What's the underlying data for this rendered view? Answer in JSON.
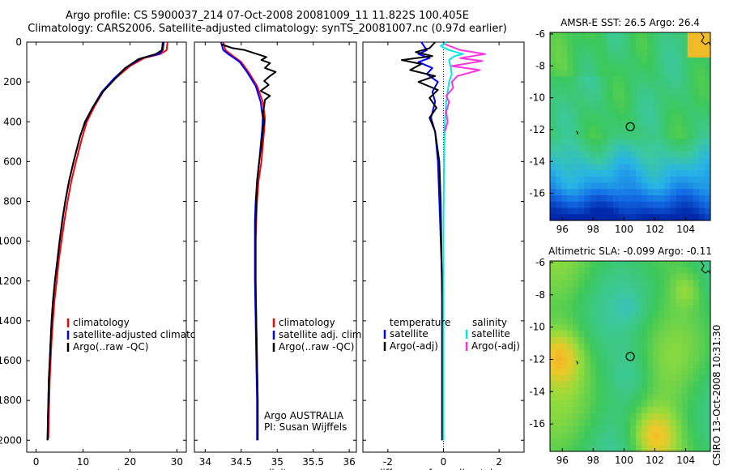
{
  "header": {
    "line1": "Argo profile: CS 5900037_214 07-Oct-2008 20081009_11 11.822S 100.405E",
    "line2": "Climatology: CARS2006. Satellite-adjusted climatology: synTS_20081007.nc (0.97d earlier)"
  },
  "credit": "CSIRO 13-Oct-2008 10:31:30",
  "colors": {
    "climatology": "#ff0000",
    "satellite": "#0000ff",
    "argo": "#000000",
    "cyan": "#00e8e8",
    "magenta": "#ff33dd"
  },
  "chart_data": [
    {
      "type": "line",
      "name": "temperature",
      "xlabel": "temperature",
      "ylabel": "",
      "xlim": [
        -2,
        32
      ],
      "ylim": [
        2060,
        0
      ],
      "xticks": [
        "0",
        "10",
        "20",
        "30"
      ],
      "xtick_values": [
        0,
        10,
        20,
        30
      ],
      "yticks": [
        "0",
        "200",
        "400",
        "600",
        "800",
        "1000",
        "1200",
        "1400",
        "1600",
        "1800",
        "2000"
      ],
      "ytick_values": [
        0,
        200,
        400,
        600,
        800,
        1000,
        1200,
        1400,
        1600,
        1800,
        2000
      ],
      "legend": [
        "climatology",
        "satellite-adjusted climatology",
        "Argo(..raw -QC)"
      ],
      "series": [
        {
          "name": "climatology",
          "color": "#ff0000",
          "points": [
            [
              28,
              0
            ],
            [
              27.8,
              40
            ],
            [
              26.5,
              60
            ],
            [
              23,
              80
            ],
            [
              20,
              120
            ],
            [
              17,
              180
            ],
            [
              14.5,
              240
            ],
            [
              12.5,
              320
            ],
            [
              10.8,
              400
            ],
            [
              9.8,
              480
            ],
            [
              8.5,
              600
            ],
            [
              7.5,
              700
            ],
            [
              6.7,
              800
            ],
            [
              6,
              900
            ],
            [
              5.4,
              1000
            ],
            [
              4.8,
              1100
            ],
            [
              4.4,
              1200
            ],
            [
              3.9,
              1300
            ],
            [
              3.6,
              1400
            ],
            [
              3.3,
              1500
            ],
            [
              3.1,
              1600
            ],
            [
              2.9,
              1700
            ],
            [
              2.8,
              1800
            ],
            [
              2.7,
              1900
            ],
            [
              2.6,
              1990
            ]
          ]
        },
        {
          "name": "satellite-adjusted climatology",
          "color": "#0000ff",
          "points": [
            [
              27.2,
              0
            ],
            [
              27,
              40
            ],
            [
              26.2,
              60
            ],
            [
              22.5,
              80
            ],
            [
              19,
              130
            ],
            [
              16.5,
              185
            ],
            [
              14,
              250
            ],
            [
              12,
              330
            ],
            [
              10.4,
              400
            ],
            [
              9.3,
              480
            ],
            [
              8,
              600
            ],
            [
              7,
              700
            ],
            [
              6.2,
              800
            ],
            [
              5.6,
              900
            ],
            [
              5,
              1000
            ],
            [
              4.5,
              1100
            ],
            [
              4,
              1200
            ],
            [
              3.6,
              1300
            ],
            [
              3.3,
              1400
            ],
            [
              3.1,
              1500
            ],
            [
              2.9,
              1600
            ],
            [
              2.7,
              1700
            ],
            [
              2.6,
              1800
            ],
            [
              2.5,
              1900
            ],
            [
              2.5,
              2000
            ]
          ]
        },
        {
          "name": "Argo(..raw -QC)",
          "color": "#000000",
          "points": [
            [
              27,
              0
            ],
            [
              26.8,
              40
            ],
            [
              25.5,
              60
            ],
            [
              21.8,
              85
            ],
            [
              19,
              130
            ],
            [
              17,
              180
            ],
            [
              14.2,
              250
            ],
            [
              12,
              330
            ],
            [
              10.5,
              400
            ],
            [
              9.4,
              470
            ],
            [
              8.1,
              590
            ],
            [
              7.1,
              690
            ],
            [
              6.3,
              790
            ],
            [
              5.6,
              890
            ],
            [
              5,
              1000
            ],
            [
              4.5,
              1100
            ],
            [
              4,
              1200
            ],
            [
              3.6,
              1300
            ],
            [
              3.3,
              1400
            ],
            [
              3.1,
              1500
            ],
            [
              2.9,
              1600
            ],
            [
              2.7,
              1700
            ],
            [
              2.6,
              1800
            ],
            [
              2.5,
              1900
            ],
            [
              2.4,
              2000
            ]
          ]
        }
      ]
    },
    {
      "type": "line",
      "name": "salinity",
      "xlabel": "salinity",
      "xlim": [
        33.85,
        36.1
      ],
      "ylim": [
        2060,
        0
      ],
      "xticks": [
        "34",
        "34.5",
        "35",
        "35.5",
        "36"
      ],
      "xtick_values": [
        34,
        34.5,
        35,
        35.5,
        36
      ],
      "legend": [
        "climatology",
        "satellite adj. clim.",
        "Argo(..raw -QC)"
      ],
      "annotation": [
        "Argo AUSTRALIA",
        "PI: Susan Wijffels"
      ],
      "series": [
        {
          "name": "climatology",
          "color": "#ff0000",
          "points": [
            [
              34.25,
              0
            ],
            [
              34.28,
              40
            ],
            [
              34.35,
              60
            ],
            [
              34.5,
              100
            ],
            [
              34.6,
              150
            ],
            [
              34.72,
              220
            ],
            [
              34.8,
              300
            ],
            [
              34.83,
              380
            ],
            [
              34.82,
              440
            ],
            [
              34.8,
              520
            ],
            [
              34.78,
              600
            ],
            [
              34.74,
              700
            ],
            [
              34.72,
              800
            ],
            [
              34.71,
              900
            ],
            [
              34.7,
              1000
            ],
            [
              34.7,
              1200
            ],
            [
              34.71,
              1400
            ],
            [
              34.72,
              1600
            ],
            [
              34.73,
              1800
            ],
            [
              34.73,
              2000
            ]
          ]
        },
        {
          "name": "satellite adj. clim.",
          "color": "#0000ff",
          "points": [
            [
              34.22,
              0
            ],
            [
              34.25,
              40
            ],
            [
              34.32,
              60
            ],
            [
              34.48,
              100
            ],
            [
              34.58,
              150
            ],
            [
              34.7,
              220
            ],
            [
              34.77,
              300
            ],
            [
              34.8,
              380
            ],
            [
              34.79,
              440
            ],
            [
              34.77,
              520
            ],
            [
              34.75,
              600
            ],
            [
              34.72,
              700
            ],
            [
              34.7,
              800
            ],
            [
              34.69,
              900
            ],
            [
              34.69,
              1000
            ],
            [
              34.69,
              1200
            ],
            [
              34.7,
              1400
            ],
            [
              34.71,
              1600
            ],
            [
              34.72,
              1800
            ],
            [
              34.72,
              2000
            ]
          ]
        },
        {
          "name": "Argo(..raw -QC)",
          "color": "#000000",
          "points": [
            [
              34.22,
              10
            ],
            [
              34.38,
              30
            ],
            [
              34.55,
              40
            ],
            [
              34.72,
              60
            ],
            [
              34.85,
              75
            ],
            [
              34.78,
              90
            ],
            [
              34.9,
              105
            ],
            [
              34.83,
              130
            ],
            [
              34.98,
              150
            ],
            [
              34.9,
              170
            ],
            [
              34.82,
              195
            ],
            [
              34.88,
              215
            ],
            [
              34.77,
              245
            ],
            [
              34.9,
              270
            ],
            [
              34.83,
              290
            ],
            [
              34.82,
              320
            ],
            [
              34.8,
              360
            ],
            [
              34.82,
              400
            ],
            [
              34.8,
              450
            ],
            [
              34.78,
              520
            ],
            [
              34.75,
              600
            ],
            [
              34.72,
              700
            ],
            [
              34.71,
              800
            ],
            [
              34.7,
              900
            ],
            [
              34.7,
              1000
            ],
            [
              34.7,
              1200
            ],
            [
              34.71,
              1400
            ],
            [
              34.72,
              1600
            ],
            [
              34.73,
              1800
            ],
            [
              34.73,
              2000
            ]
          ]
        }
      ]
    },
    {
      "type": "line",
      "name": "difference",
      "xlabel": "difference from climatology",
      "xlim": [
        -2.9,
        2.9
      ],
      "ylim": [
        2060,
        0
      ],
      "xticks": [
        "-2",
        "0",
        "2"
      ],
      "xtick_values": [
        -2,
        0,
        2
      ],
      "legend_left_title": "temperature",
      "legend_right_title": "salinity",
      "legend_left": [
        "satellite",
        "Argo(-adj)"
      ],
      "legend_right": [
        "satellite",
        "Argo(-adj)"
      ],
      "series": [
        {
          "name": "temperature satellite",
          "color": "#0000ff",
          "points": [
            [
              -0.8,
              0
            ],
            [
              -0.6,
              40
            ],
            [
              -0.9,
              60
            ],
            [
              -0.5,
              80
            ],
            [
              -0.9,
              100
            ],
            [
              -0.4,
              130
            ],
            [
              -0.6,
              160
            ],
            [
              -0.2,
              200
            ],
            [
              -0.4,
              250
            ],
            [
              -0.3,
              300
            ],
            [
              -0.45,
              380
            ],
            [
              -0.3,
              450
            ],
            [
              -0.2,
              600
            ],
            [
              -0.15,
              800
            ],
            [
              -0.1,
              1000
            ],
            [
              -0.05,
              1200
            ],
            [
              -0.05,
              1500
            ],
            [
              -0.05,
              1800
            ],
            [
              -0.05,
              2000
            ]
          ]
        },
        {
          "name": "temperature Argo(-adj)",
          "color": "#000000",
          "points": [
            [
              -0.3,
              0
            ],
            [
              -0.5,
              30
            ],
            [
              -1.0,
              50
            ],
            [
              -0.4,
              70
            ],
            [
              -1.5,
              90
            ],
            [
              -0.8,
              110
            ],
            [
              -1.2,
              140
            ],
            [
              -0.3,
              170
            ],
            [
              -0.9,
              200
            ],
            [
              -0.2,
              240
            ],
            [
              -0.5,
              280
            ],
            [
              -0.25,
              330
            ],
            [
              -0.5,
              380
            ],
            [
              -0.3,
              450
            ],
            [
              -0.15,
              600
            ],
            [
              -0.1,
              800
            ],
            [
              -0.08,
              1000
            ],
            [
              -0.05,
              1300
            ],
            [
              -0.05,
              1600
            ],
            [
              -0.05,
              2000
            ]
          ]
        },
        {
          "name": "salinity satellite",
          "color": "#00e8e8",
          "points": [
            [
              0.1,
              0
            ],
            [
              -0.1,
              20
            ],
            [
              0.2,
              40
            ],
            [
              0.7,
              60
            ],
            [
              0.4,
              70
            ],
            [
              0.2,
              90
            ],
            [
              0.25,
              120
            ],
            [
              0.3,
              160
            ],
            [
              0.2,
              200
            ],
            [
              0.1,
              300
            ],
            [
              0.05,
              400
            ],
            [
              0.02,
              600
            ],
            [
              0.0,
              900
            ],
            [
              0.0,
              1400
            ],
            [
              0.0,
              2000
            ]
          ]
        },
        {
          "name": "salinity Argo(-adj)",
          "color": "#ff33dd",
          "points": [
            [
              0.05,
              10
            ],
            [
              0.6,
              40
            ],
            [
              1.5,
              60
            ],
            [
              0.6,
              80
            ],
            [
              1.4,
              95
            ],
            [
              0.3,
              120
            ],
            [
              1.3,
              140
            ],
            [
              0.5,
              170
            ],
            [
              0.3,
              200
            ],
            [
              0.35,
              230
            ],
            [
              0.1,
              270
            ],
            [
              0.2,
              300
            ],
            [
              0.1,
              350
            ],
            [
              0.15,
              400
            ],
            [
              0.05,
              450
            ]
          ]
        }
      ]
    },
    {
      "type": "heatmap",
      "name": "sst_map",
      "title": "AMSR-E SST: 26.5  Argo: 26.4",
      "xlim": [
        95.2,
        105.6
      ],
      "ylim": [
        -17.7,
        -5.9
      ],
      "xticks": [
        "96",
        "98",
        "100",
        "102",
        "104"
      ],
      "xtick_values": [
        96,
        98,
        100,
        102,
        104
      ],
      "yticks": [
        "-6",
        "-8",
        "-10",
        "-12",
        "-14",
        "-16"
      ],
      "ytick_values": [
        -6,
        -8,
        -10,
        -12,
        -14,
        -16
      ],
      "float_position": [
        100.405,
        -11.822
      ]
    },
    {
      "type": "heatmap",
      "name": "sla_map",
      "title": "Altimetric SLA: -0.099  Argo: -0.11",
      "xlim": [
        95.2,
        105.6
      ],
      "ylim": [
        -17.7,
        -5.9
      ],
      "xticks": [
        "96",
        "98",
        "100",
        "102",
        "104"
      ],
      "xtick_values": [
        96,
        98,
        100,
        102,
        104
      ],
      "yticks": [
        "-6",
        "-8",
        "-10",
        "-12",
        "-14",
        "-16"
      ],
      "ytick_values": [
        -6,
        -8,
        -10,
        -12,
        -14,
        -16
      ],
      "float_position": [
        100.405,
        -11.822
      ]
    }
  ]
}
